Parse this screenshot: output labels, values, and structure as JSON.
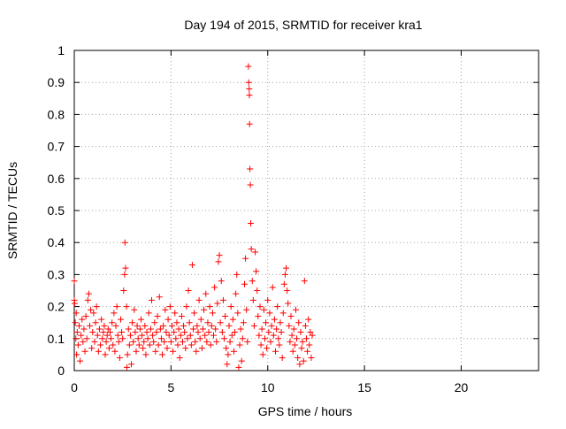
{
  "chart_data": {
    "type": "scatter",
    "title": "Day 194 of 2015, SRMTID for receiver kra1",
    "xlabel": "GPS time / hours",
    "ylabel": "SRMTID / TECUs",
    "xlim": [
      0,
      24
    ],
    "ylim": [
      0,
      1
    ],
    "xticks": [
      {
        "value": 0,
        "label": "0"
      },
      {
        "value": 5,
        "label": "5"
      },
      {
        "value": 10,
        "label": "10"
      },
      {
        "value": 15,
        "label": "15"
      },
      {
        "value": 20,
        "label": "20"
      }
    ],
    "yticks": [
      {
        "value": 0,
        "label": "0"
      },
      {
        "value": 0.1,
        "label": "0.1"
      },
      {
        "value": 0.2,
        "label": "0.2"
      },
      {
        "value": 0.3,
        "label": "0.3"
      },
      {
        "value": 0.4,
        "label": "0.4"
      },
      {
        "value": 0.5,
        "label": "0.5"
      },
      {
        "value": 0.6,
        "label": "0.6"
      },
      {
        "value": 0.7,
        "label": "0.7"
      },
      {
        "value": 0.8,
        "label": "0.8"
      },
      {
        "value": 0.9,
        "label": "0.9"
      },
      {
        "value": 1,
        "label": "1"
      }
    ],
    "grid": true,
    "marker": "+",
    "color": "#ff0000",
    "series": [
      {
        "values": [
          [
            0.0,
            0.28
          ],
          [
            0.0,
            0.22
          ],
          [
            0.02,
            0.21
          ],
          [
            0.05,
            0.15
          ],
          [
            0.08,
            0.1
          ],
          [
            0.1,
            0.18
          ],
          [
            0.12,
            0.05
          ],
          [
            0.15,
            0.12
          ],
          [
            0.2,
            0.08
          ],
          [
            0.25,
            0.14
          ],
          [
            0.3,
            0.03
          ],
          [
            0.35,
            0.11
          ],
          [
            0.4,
            0.16
          ],
          [
            0.45,
            0.09
          ],
          [
            0.5,
            0.13
          ],
          [
            0.55,
            0.06
          ],
          [
            0.6,
            0.17
          ],
          [
            0.65,
            0.1
          ],
          [
            0.7,
            0.22
          ],
          [
            0.75,
            0.24
          ],
          [
            0.8,
            0.14
          ],
          [
            0.85,
            0.19
          ],
          [
            0.9,
            0.07
          ],
          [
            0.95,
            0.12
          ],
          [
            1.0,
            0.18
          ],
          [
            1.05,
            0.09
          ],
          [
            1.1,
            0.15
          ],
          [
            1.15,
            0.2
          ],
          [
            1.2,
            0.11
          ],
          [
            1.25,
            0.06
          ],
          [
            1.3,
            0.13
          ],
          [
            1.35,
            0.08
          ],
          [
            1.4,
            0.16
          ],
          [
            1.45,
            0.1
          ],
          [
            1.5,
            0.12
          ],
          [
            1.55,
            0.14
          ],
          [
            1.6,
            0.05
          ],
          [
            1.65,
            0.09
          ],
          [
            1.7,
            0.11
          ],
          [
            1.75,
            0.13
          ],
          [
            1.8,
            0.07
          ],
          [
            1.85,
            0.12
          ],
          [
            1.9,
            0.1
          ],
          [
            1.95,
            0.15
          ],
          [
            2.0,
            0.08
          ],
          [
            2.05,
            0.18
          ],
          [
            2.1,
            0.06
          ],
          [
            2.15,
            0.14
          ],
          [
            2.2,
            0.2
          ],
          [
            2.25,
            0.11
          ],
          [
            2.3,
            0.09
          ],
          [
            2.35,
            0.04
          ],
          [
            2.4,
            0.16
          ],
          [
            2.45,
            0.12
          ],
          [
            2.5,
            0.1
          ],
          [
            2.55,
            0.25
          ],
          [
            2.6,
            0.3
          ],
          [
            2.62,
            0.4
          ],
          [
            2.65,
            0.32
          ],
          [
            2.7,
            0.2
          ],
          [
            2.72,
            0.01
          ],
          [
            2.75,
            0.05
          ],
          [
            2.8,
            0.13
          ],
          [
            2.85,
            0.08
          ],
          [
            2.9,
            0.11
          ],
          [
            2.95,
            0.02
          ],
          [
            3.0,
            0.15
          ],
          [
            3.05,
            0.09
          ],
          [
            3.1,
            0.19
          ],
          [
            3.15,
            0.12
          ],
          [
            3.2,
            0.06
          ],
          [
            3.25,
            0.14
          ],
          [
            3.3,
            0.1
          ],
          [
            3.35,
            0.08
          ],
          [
            3.4,
            0.13
          ],
          [
            3.45,
            0.16
          ],
          [
            3.5,
            0.11
          ],
          [
            3.55,
            0.07
          ],
          [
            3.6,
            0.09
          ],
          [
            3.65,
            0.14
          ],
          [
            3.7,
            0.05
          ],
          [
            3.75,
            0.12
          ],
          [
            3.8,
            0.1
          ],
          [
            3.85,
            0.18
          ],
          [
            3.9,
            0.08
          ],
          [
            3.95,
            0.13
          ],
          [
            4.0,
            0.22
          ],
          [
            4.05,
            0.11
          ],
          [
            4.1,
            0.09
          ],
          [
            4.15,
            0.15
          ],
          [
            4.2,
            0.06
          ],
          [
            4.25,
            0.12
          ],
          [
            4.3,
            0.17
          ],
          [
            4.35,
            0.08
          ],
          [
            4.4,
            0.23
          ],
          [
            4.45,
            0.13
          ],
          [
            4.5,
            0.1
          ],
          [
            4.55,
            0.05
          ],
          [
            4.6,
            0.14
          ],
          [
            4.65,
            0.09
          ],
          [
            4.7,
            0.19
          ],
          [
            4.75,
            0.12
          ],
          [
            4.8,
            0.07
          ],
          [
            4.85,
            0.16
          ],
          [
            4.9,
            0.11
          ],
          [
            4.95,
            0.2
          ],
          [
            5.0,
            0.09
          ],
          [
            5.05,
            0.14
          ],
          [
            5.1,
            0.06
          ],
          [
            5.15,
            0.12
          ],
          [
            5.2,
            0.18
          ],
          [
            5.25,
            0.1
          ],
          [
            5.3,
            0.15
          ],
          [
            5.35,
            0.08
          ],
          [
            5.4,
            0.13
          ],
          [
            5.45,
            0.04
          ],
          [
            5.5,
            0.11
          ],
          [
            5.55,
            0.17
          ],
          [
            5.6,
            0.09
          ],
          [
            5.65,
            0.14
          ],
          [
            5.7,
            0.12
          ],
          [
            5.75,
            0.07
          ],
          [
            5.8,
            0.2
          ],
          [
            5.85,
            0.1
          ],
          [
            5.9,
            0.25
          ],
          [
            5.95,
            0.15
          ],
          [
            6.0,
            0.11
          ],
          [
            6.05,
            0.08
          ],
          [
            6.1,
            0.33
          ],
          [
            6.15,
            0.13
          ],
          [
            6.2,
            0.18
          ],
          [
            6.25,
            0.09
          ],
          [
            6.3,
            0.06
          ],
          [
            6.35,
            0.14
          ],
          [
            6.4,
            0.12
          ],
          [
            6.45,
            0.22
          ],
          [
            6.5,
            0.1
          ],
          [
            6.55,
            0.16
          ],
          [
            6.6,
            0.07
          ],
          [
            6.65,
            0.13
          ],
          [
            6.7,
            0.19
          ],
          [
            6.75,
            0.11
          ],
          [
            6.8,
            0.24
          ],
          [
            6.85,
            0.09
          ],
          [
            6.9,
            0.15
          ],
          [
            6.95,
            0.12
          ],
          [
            7.0,
            0.2
          ],
          [
            7.05,
            0.08
          ],
          [
            7.1,
            0.14
          ],
          [
            7.15,
            0.18
          ],
          [
            7.2,
            0.11
          ],
          [
            7.25,
            0.26
          ],
          [
            7.3,
            0.13
          ],
          [
            7.35,
            0.09
          ],
          [
            7.4,
            0.21
          ],
          [
            7.45,
            0.34
          ],
          [
            7.5,
            0.36
          ],
          [
            7.55,
            0.15
          ],
          [
            7.6,
            0.28
          ],
          [
            7.65,
            0.12
          ],
          [
            7.7,
            0.22
          ],
          [
            7.75,
            0.1
          ],
          [
            7.8,
            0.17
          ],
          [
            7.85,
            0.07
          ],
          [
            7.9,
            0.02
          ],
          [
            7.95,
            0.05
          ],
          [
            8.0,
            0.14
          ],
          [
            8.05,
            0.09
          ],
          [
            8.1,
            0.2
          ],
          [
            8.15,
            0.11
          ],
          [
            8.2,
            0.16
          ],
          [
            8.25,
            0.06
          ],
          [
            8.3,
            0.12
          ],
          [
            8.35,
            0.24
          ],
          [
            8.4,
            0.3
          ],
          [
            8.45,
            0.18
          ],
          [
            8.5,
            0.01
          ],
          [
            8.55,
            0.08
          ],
          [
            8.6,
            0.13
          ],
          [
            8.65,
            0.03
          ],
          [
            8.7,
            0.1
          ],
          [
            8.75,
            0.15
          ],
          [
            8.8,
            0.27
          ],
          [
            8.85,
            0.35
          ],
          [
            8.9,
            0.19
          ],
          [
            8.95,
            0.09
          ],
          [
            9.0,
            0.95
          ],
          [
            9.02,
            0.9
          ],
          [
            9.04,
            0.88
          ],
          [
            9.05,
            0.86
          ],
          [
            9.06,
            0.77
          ],
          [
            9.08,
            0.63
          ],
          [
            9.1,
            0.58
          ],
          [
            9.12,
            0.46
          ],
          [
            9.15,
            0.38
          ],
          [
            9.2,
            0.28
          ],
          [
            9.25,
            0.22
          ],
          [
            9.3,
            0.14
          ],
          [
            9.35,
            0.37
          ],
          [
            9.4,
            0.31
          ],
          [
            9.45,
            0.25
          ],
          [
            9.5,
            0.17
          ],
          [
            9.55,
            0.11
          ],
          [
            9.6,
            0.2
          ],
          [
            9.65,
            0.08
          ],
          [
            9.7,
            0.13
          ],
          [
            9.75,
            0.05
          ],
          [
            9.8,
            0.19
          ],
          [
            9.85,
            0.1
          ],
          [
            9.9,
            0.15
          ],
          [
            9.95,
            0.07
          ],
          [
            10.0,
            0.22
          ],
          [
            10.05,
            0.12
          ],
          [
            10.1,
            0.18
          ],
          [
            10.15,
            0.09
          ],
          [
            10.2,
            0.14
          ],
          [
            10.25,
            0.26
          ],
          [
            10.3,
            0.11
          ],
          [
            10.35,
            0.16
          ],
          [
            10.4,
            0.06
          ],
          [
            10.45,
            0.13
          ],
          [
            10.5,
            0.2
          ],
          [
            10.55,
            0.1
          ],
          [
            10.6,
            0.08
          ],
          [
            10.65,
            0.15
          ],
          [
            10.7,
            0.12
          ],
          [
            10.75,
            0.04
          ],
          [
            10.8,
            0.18
          ],
          [
            10.85,
            0.27
          ],
          [
            10.9,
            0.3
          ],
          [
            10.95,
            0.32
          ],
          [
            11.0,
            0.25
          ],
          [
            11.05,
            0.21
          ],
          [
            11.1,
            0.14
          ],
          [
            11.15,
            0.09
          ],
          [
            11.2,
            0.17
          ],
          [
            11.25,
            0.11
          ],
          [
            11.3,
            0.06
          ],
          [
            11.35,
            0.13
          ],
          [
            11.4,
            0.08
          ],
          [
            11.45,
            0.19
          ],
          [
            11.5,
            0.1
          ],
          [
            11.55,
            0.04
          ],
          [
            11.6,
            0.15
          ],
          [
            11.65,
            0.02
          ],
          [
            11.7,
            0.12
          ],
          [
            11.75,
            0.07
          ],
          [
            11.8,
            0.09
          ],
          [
            11.85,
            0.03
          ],
          [
            11.9,
            0.28
          ],
          [
            11.95,
            0.14
          ],
          [
            12.0,
            0.1
          ],
          [
            12.05,
            0.06
          ],
          [
            12.1,
            0.16
          ],
          [
            12.15,
            0.08
          ],
          [
            12.2,
            0.12
          ],
          [
            12.25,
            0.04
          ],
          [
            12.3,
            0.11
          ]
        ]
      }
    ]
  }
}
